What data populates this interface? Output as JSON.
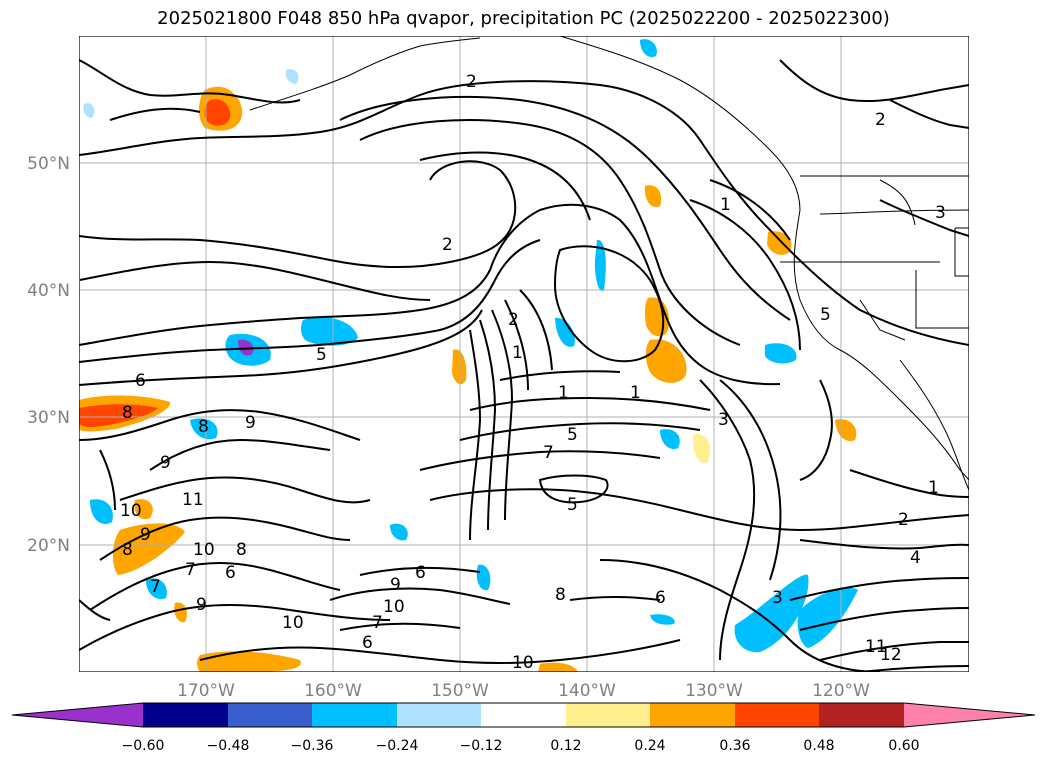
{
  "title": "2025021800 F048 850 hPa qvapor, precipitation PC (2025022200 - 2025022300)",
  "map": {
    "lat_labels": [
      "50°N",
      "40°N",
      "30°N",
      "20°N"
    ],
    "lon_labels": [
      "170°W",
      "160°W",
      "150°W",
      "140°W",
      "130°W",
      "120°W"
    ],
    "grid": true,
    "contour_labels": [
      "2",
      "1",
      "2",
      "3",
      "3",
      "2",
      "1",
      "5",
      "6",
      "8",
      "9",
      "8",
      "9",
      "11",
      "10",
      "9",
      "8",
      "10",
      "8",
      "7",
      "6",
      "9",
      "7",
      "6",
      "9",
      "10",
      "7",
      "6",
      "10",
      "10",
      "8",
      "6",
      "1",
      "1",
      "7",
      "5",
      "5",
      "2",
      "4",
      "3",
      "11",
      "12",
      "2",
      "1",
      "5"
    ]
  },
  "colorbar": {
    "ticks": [
      "−0.60",
      "−0.48",
      "−0.36",
      "−0.24",
      "−0.12",
      "0.12",
      "0.24",
      "0.36",
      "0.48",
      "0.60"
    ],
    "colors": [
      "#9932cc",
      "#00008b",
      "#3a5fcd",
      "#00bfff",
      "#b0e2ff",
      "#ffffff",
      "#fff08f",
      "#ffa500",
      "#ff4500",
      "#b22222",
      "#ff82ab"
    ]
  }
}
